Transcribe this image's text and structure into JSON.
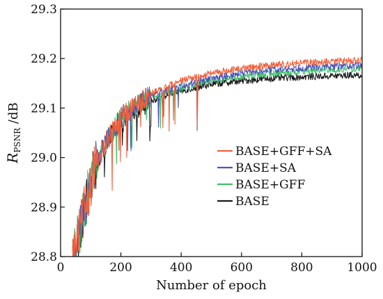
{
  "chart_data": {
    "type": "line",
    "title": "",
    "xlabel": "Number of epoch",
    "ylabel": {
      "main": "R",
      "sub": "PSNR",
      "unit": " /dB"
    },
    "xlim": [
      0,
      1000
    ],
    "ylim": [
      28.8,
      29.3
    ],
    "xticks": [
      "0",
      "200",
      "400",
      "600",
      "800",
      "1000"
    ],
    "yticks": [
      "28.8",
      "28.9",
      "29.0",
      "29.1",
      "29.2",
      "29.3"
    ],
    "grid": false,
    "legend_position": "center-right",
    "series": [
      {
        "name": "BASE+GFF+SA",
        "color": "#f0603a",
        "trend": {
          "x": [
            40,
            60,
            80,
            100,
            120,
            150,
            200,
            250,
            300,
            400,
            500,
            600,
            700,
            800,
            900,
            1000
          ],
          "y": [
            28.8,
            28.84,
            28.9,
            28.95,
            28.99,
            29.03,
            29.08,
            29.11,
            29.13,
            29.155,
            29.17,
            29.18,
            29.187,
            29.191,
            29.194,
            29.197
          ]
        }
      },
      {
        "name": "BASE+SA",
        "color": "#4a55b8",
        "trend": {
          "x": [
            40,
            60,
            80,
            100,
            120,
            150,
            200,
            250,
            300,
            400,
            500,
            600,
            700,
            800,
            900,
            1000
          ],
          "y": [
            28.8,
            28.84,
            28.9,
            28.95,
            28.99,
            29.03,
            29.08,
            29.11,
            29.125,
            29.145,
            29.16,
            29.17,
            29.177,
            29.181,
            29.184,
            29.187
          ]
        }
      },
      {
        "name": "BASE+GFF",
        "color": "#3dbf6a",
        "trend": {
          "x": [
            40,
            60,
            80,
            100,
            120,
            150,
            200,
            250,
            300,
            400,
            500,
            600,
            700,
            800,
            900,
            1000
          ],
          "y": [
            28.8,
            28.84,
            28.9,
            28.95,
            28.99,
            29.03,
            29.08,
            29.105,
            29.12,
            29.14,
            29.155,
            29.163,
            29.17,
            29.174,
            29.177,
            29.18
          ]
        }
      },
      {
        "name": "BASE",
        "color": "#1a1a1a",
        "trend": {
          "x": [
            40,
            60,
            80,
            100,
            120,
            150,
            200,
            250,
            300,
            400,
            500,
            600,
            700,
            800,
            900,
            1000
          ],
          "y": [
            28.8,
            28.84,
            28.9,
            28.95,
            28.99,
            29.03,
            29.07,
            29.1,
            29.115,
            29.135,
            29.148,
            29.155,
            29.16,
            29.163,
            29.165,
            29.167
          ]
        }
      }
    ]
  }
}
